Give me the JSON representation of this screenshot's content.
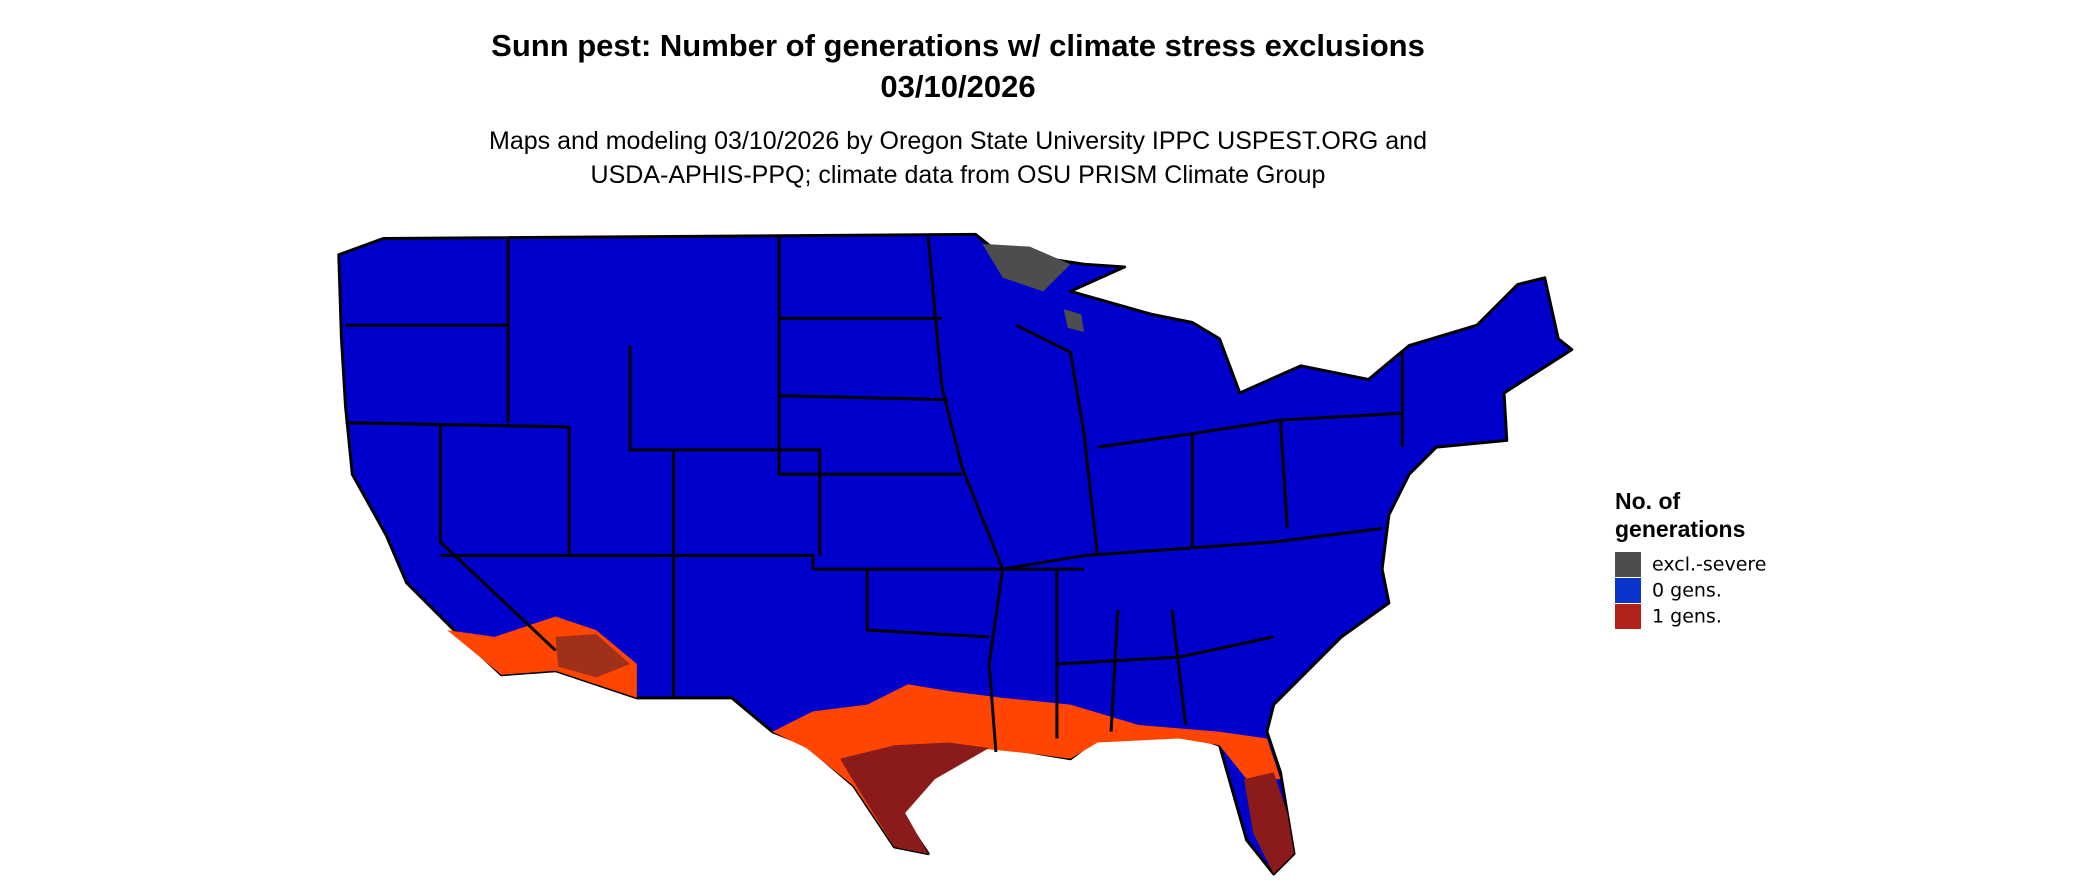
{
  "header": {
    "title_lines": [
      "Sunn pest: Number of generations w/ climate stress exclusions",
      "03/10/2026"
    ],
    "subtitle_lines": [
      "Maps and modeling 03/10/2026 by Oregon State University IPPC USPEST.ORG and",
      "USDA-APHIS-PPQ; climate data from OSU PRISM Climate Group"
    ]
  },
  "legend": {
    "title_lines": [
      "No. of",
      "generations"
    ],
    "items": [
      {
        "label": "excl.-severe",
        "color": "#4d4d4d"
      },
      {
        "label": "0 gens.",
        "color": "#0a33cc"
      },
      {
        "label": "1 gens.",
        "color": "#b2221a"
      }
    ]
  }
}
